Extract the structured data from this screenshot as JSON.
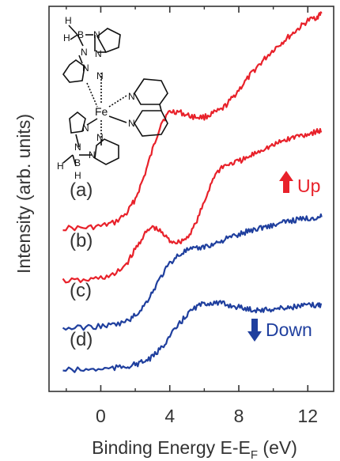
{
  "chart_data": {
    "type": "line",
    "xlabel": "Binding Energy E-E",
    "xlabel_sub": "F",
    "xlabel_unit": " (eV)",
    "ylabel": "Intensity (arb. units)",
    "xlim": [
      -3,
      13.5
    ],
    "x_ticks": [
      0,
      4,
      8,
      12
    ],
    "x_tick_labels": [
      "0",
      "4",
      "8",
      "12"
    ],
    "y_ticks_shown": false,
    "grid": false,
    "annotations": {
      "up_label": "Up",
      "down_label": "Down",
      "up_color": "#e8212a",
      "down_color": "#1f3f9e"
    },
    "series": [
      {
        "label": "(a)",
        "color": "#e8212a",
        "x": [
          -2.2,
          -1,
          0,
          0.8,
          1.5,
          2,
          2.5,
          3,
          3.5,
          4,
          4.5,
          5,
          5.5,
          6,
          6.5,
          7,
          7.5,
          8,
          8.5,
          9,
          9.5,
          10,
          10.5,
          11,
          11.5,
          12,
          12.5,
          12.8
        ],
        "y": [
          0.02,
          0.02,
          0.03,
          0.05,
          0.1,
          0.18,
          0.3,
          0.45,
          0.6,
          0.66,
          0.66,
          0.64,
          0.63,
          0.63,
          0.65,
          0.67,
          0.72,
          0.78,
          0.84,
          0.9,
          0.95,
          1.0,
          1.04,
          1.08,
          1.12,
          1.16,
          1.18,
          1.2
        ]
      },
      {
        "label": "(b)",
        "color": "#e8212a",
        "x": [
          -2.2,
          -1,
          0,
          0.8,
          1.5,
          2,
          2.5,
          3,
          3.5,
          4,
          4.5,
          5,
          5.5,
          6,
          6.5,
          7,
          7.5,
          8,
          8.5,
          9,
          9.5,
          10,
          10.5,
          11,
          11.5,
          12,
          12.5,
          12.8
        ],
        "y": [
          0.0,
          0.0,
          0.02,
          0.04,
          0.12,
          0.22,
          0.32,
          0.38,
          0.34,
          0.28,
          0.27,
          0.3,
          0.4,
          0.55,
          0.72,
          0.8,
          0.82,
          0.84,
          0.86,
          0.9,
          0.93,
          0.95,
          0.98,
          1.0,
          1.02,
          1.03,
          1.05,
          1.05
        ]
      },
      {
        "label": "(c)",
        "color": "#1f3f9e",
        "x": [
          -2.2,
          -1,
          0,
          0.8,
          1.5,
          2,
          2.5,
          3,
          3.5,
          4,
          4.5,
          5,
          5.5,
          6,
          6.5,
          7,
          7.5,
          8,
          8.5,
          9,
          9.5,
          10,
          10.5,
          11,
          11.5,
          12,
          12.5,
          12.8
        ],
        "y": [
          0.01,
          0.02,
          0.03,
          0.04,
          0.07,
          0.12,
          0.2,
          0.32,
          0.45,
          0.56,
          0.63,
          0.67,
          0.68,
          0.7,
          0.72,
          0.75,
          0.78,
          0.8,
          0.83,
          0.85,
          0.87,
          0.88,
          0.9,
          0.92,
          0.93,
          0.94,
          0.95,
          0.95
        ]
      },
      {
        "label": "(d)",
        "color": "#1f3f9e",
        "x": [
          -2.2,
          -1,
          0,
          0.8,
          1.5,
          2,
          2.5,
          3,
          3.5,
          4,
          4.5,
          5,
          5.5,
          6,
          6.5,
          7,
          7.5,
          8,
          8.5,
          9,
          9.5,
          10,
          10.5,
          11,
          11.5,
          12,
          12.5,
          12.8
        ],
        "y": [
          0.01,
          0.01,
          0.02,
          0.03,
          0.05,
          0.07,
          0.1,
          0.15,
          0.25,
          0.38,
          0.5,
          0.62,
          0.7,
          0.74,
          0.75,
          0.74,
          0.72,
          0.7,
          0.68,
          0.67,
          0.67,
          0.68,
          0.69,
          0.7,
          0.71,
          0.72,
          0.72,
          0.73
        ]
      }
    ]
  },
  "inset": {
    "atoms": {
      "boron": "B",
      "hydrogen": "H",
      "nitrogen": "N",
      "iron": "Fe"
    }
  }
}
